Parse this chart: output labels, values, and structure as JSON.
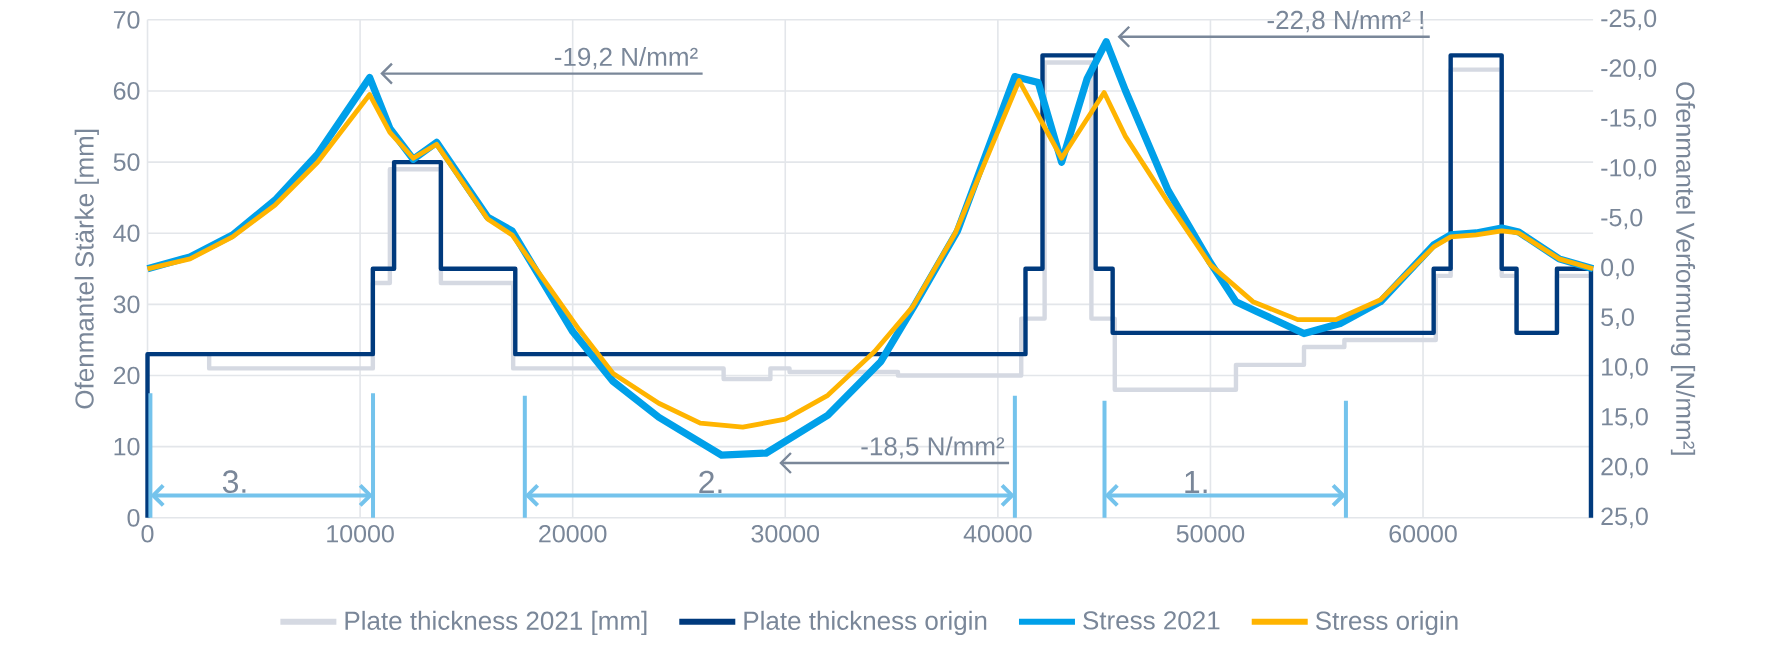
{
  "chart_data": {
    "type": "line",
    "ylabel": "Ofenmantel Stärke [mm]",
    "y2label": "Ofenmantel Verformung [N/mm²]",
    "xlim": [
      0,
      68000
    ],
    "xticks": [
      0,
      10000,
      20000,
      30000,
      40000,
      50000,
      60000
    ],
    "ylim": [
      0,
      70
    ],
    "yticks": [
      0,
      10,
      20,
      30,
      40,
      50,
      60,
      70
    ],
    "y2lim": [
      25,
      -25
    ],
    "y2ticks": [
      {
        "value": -25,
        "label": "-25,0"
      },
      {
        "value": -20,
        "label": "-20,0"
      },
      {
        "value": -15,
        "label": "-15,0"
      },
      {
        "value": -10,
        "label": "-10,0"
      },
      {
        "value": -5,
        "label": "-5,0"
      },
      {
        "value": 0,
        "label": "0,0"
      },
      {
        "value": 5,
        "label": "5,0"
      },
      {
        "value": 10,
        "label": "10,0"
      },
      {
        "value": 15,
        "label": "15,0"
      },
      {
        "value": 20,
        "label": "20,0"
      },
      {
        "value": 25,
        "label": "25,0"
      }
    ],
    "grid": true,
    "legend": "bottom",
    "series": [
      {
        "name": "Plate thickness 2021 [mm]",
        "type": "step",
        "color": "#d5d9e2",
        "x": [
          0,
          2900,
          10600,
          11400,
          13800,
          17200,
          27100,
          29300,
          30200,
          35300,
          41100,
          42200,
          44400,
          45500,
          51200,
          54400,
          56300,
          60600,
          61300,
          63700,
          64400,
          66300,
          67900
        ],
        "values": [
          23,
          21,
          33,
          49,
          33,
          21,
          19.5,
          21,
          20.5,
          20,
          28,
          64,
          28,
          18,
          21.5,
          24,
          25,
          34,
          63,
          34,
          26,
          34,
          34
        ]
      },
      {
        "name": "Plate thickness origin",
        "type": "step",
        "color": "#003a7d",
        "x": [
          0,
          0,
          10600,
          11600,
          13800,
          17300,
          41300,
          42100,
          44600,
          45400,
          60500,
          61300,
          63700,
          64400,
          66300,
          67900
        ],
        "values": [
          0,
          23,
          35,
          50,
          35,
          23,
          35,
          65,
          35,
          26,
          35,
          65,
          35,
          26,
          35,
          0
        ]
      },
      {
        "name": "Stress 2021",
        "type": "line",
        "axis": "y2",
        "color": "#00a0e9",
        "x": [
          0,
          2000,
          4000,
          6000,
          8000,
          10450,
          11400,
          12500,
          13600,
          16000,
          17150,
          20000,
          21900,
          24050,
          27000,
          29100,
          32000,
          34500,
          36100,
          38100,
          40800,
          41900,
          43000,
          44200,
          45100,
          46000,
          48000,
          50000,
          51200,
          52200,
          54400,
          56100,
          58000,
          60500,
          61300,
          62500,
          63700,
          64500,
          66400,
          68000
        ],
        "values": [
          0,
          -1.2,
          -3.4,
          -6.9,
          -11.5,
          -19.2,
          -14.1,
          -11.0,
          -12.7,
          -5.2,
          -3.8,
          6.3,
          11.3,
          14.9,
          18.7,
          18.5,
          14.7,
          9.3,
          3.6,
          -3.8,
          -19.3,
          -18.7,
          -10.7,
          -19.1,
          -22.8,
          -17.9,
          -7.9,
          -0.6,
          3.3,
          4.3,
          6.5,
          5.5,
          3.3,
          -2.4,
          -3.4,
          -3.6,
          -4.1,
          -3.7,
          -1.0,
          0.0
        ]
      },
      {
        "name": "Stress origin",
        "type": "line",
        "axis": "y2",
        "color": "#ffb400",
        "x": [
          0,
          2000,
          4000,
          6000,
          8000,
          10450,
          11400,
          12500,
          13600,
          16000,
          17150,
          20300,
          21900,
          24050,
          26000,
          28000,
          30000,
          32000,
          34200,
          36000,
          38000,
          41000,
          43000,
          45000,
          46000,
          48000,
          50000,
          52000,
          54100,
          55900,
          58000,
          60500,
          61300,
          62500,
          63700,
          64500,
          66400,
          68000
        ],
        "values": [
          0,
          -1.0,
          -3.2,
          -6.4,
          -10.7,
          -17.5,
          -13.7,
          -11.1,
          -12.5,
          -5.0,
          -3.4,
          6.1,
          10.5,
          13.5,
          15.5,
          15.9,
          15.1,
          12.7,
          8.3,
          3.8,
          -3.6,
          -18.9,
          -11.1,
          -17.7,
          -13.3,
          -6.7,
          -0.4,
          3.3,
          5.1,
          5.1,
          3.1,
          -2.2,
          -3.2,
          -3.4,
          -3.8,
          -3.6,
          -1.0,
          0.0
        ]
      }
    ],
    "annotations": [
      "-19,2 N/mm²",
      "-18,5 N/mm²",
      "-22,8 N/mm² !",
      "3.",
      "2.",
      "1."
    ]
  }
}
